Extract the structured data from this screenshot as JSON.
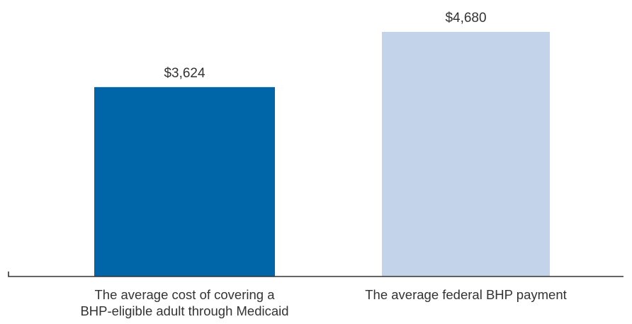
{
  "chart_data": {
    "type": "bar",
    "title": "",
    "xlabel": "",
    "ylabel": "",
    "categories": [
      [
        "The average cost of covering a",
        "BHP-eligible adult through Medicaid"
      ],
      [
        "The average federal BHP payment"
      ]
    ],
    "values": [
      3624,
      4680
    ],
    "value_labels": [
      "$3,624",
      "$4,680"
    ],
    "colors": [
      "#0066a8",
      "#c3d4ea"
    ],
    "ylim": [
      0,
      4880
    ],
    "grid": false,
    "legend": "none"
  },
  "colors": {
    "axis": "#333333",
    "text": "#333333"
  }
}
